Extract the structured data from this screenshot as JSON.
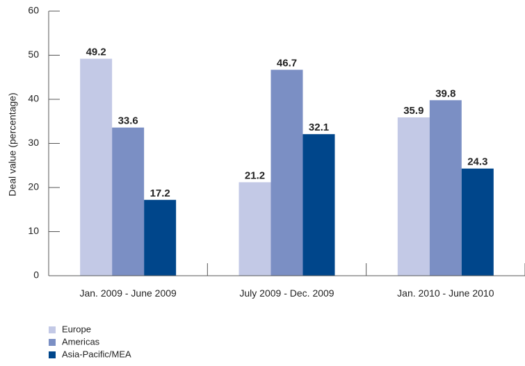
{
  "chart_data": {
    "type": "bar",
    "title": "",
    "xlabel": "",
    "ylabel": "Deal value (percentage)",
    "ylim": [
      0,
      60
    ],
    "yticks": [
      0,
      10,
      20,
      30,
      40,
      50,
      60
    ],
    "categories": [
      "Jan. 2009 - June 2009",
      "July 2009 - Dec. 2009",
      "Jan. 2010 - June 2010"
    ],
    "series": [
      {
        "name": "Europe",
        "color": "#c3c9e6",
        "values": [
          49.2,
          21.2,
          35.9
        ],
        "labels": [
          "49.2",
          "21.2",
          "35.9"
        ]
      },
      {
        "name": "Americas",
        "color": "#7b8fc4",
        "values": [
          33.6,
          46.7,
          39.8
        ],
        "labels": [
          "33.6",
          "46.7",
          "39.8"
        ]
      },
      {
        "name": "Asia-Pacific/MEA",
        "color": "#00468b",
        "values": [
          17.2,
          32.1,
          24.3
        ],
        "labels": [
          "17.2",
          "32.1",
          "24.3"
        ]
      }
    ],
    "grid": false,
    "legend_position": "bottom-left"
  }
}
